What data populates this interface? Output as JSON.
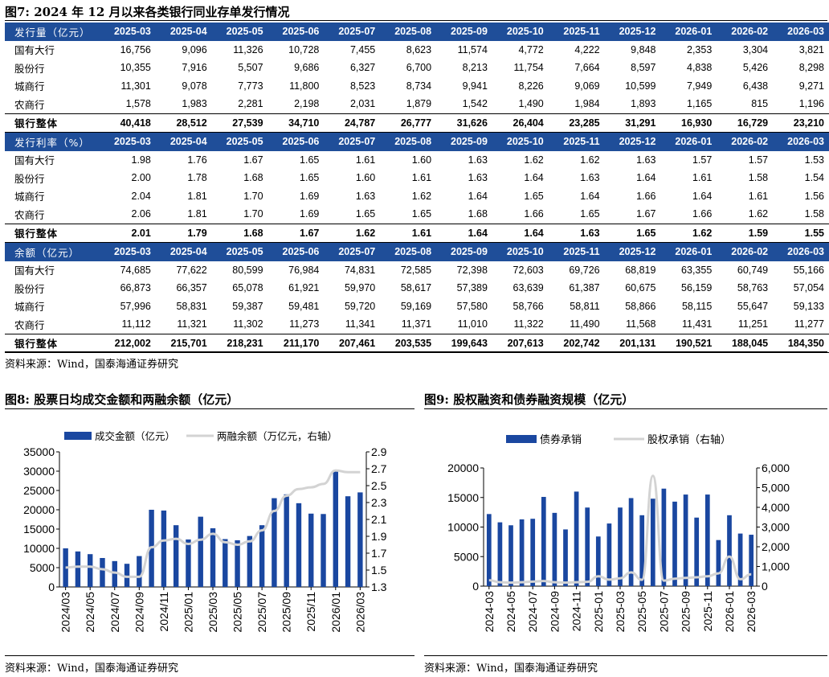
{
  "table": {
    "title": "图7:  2024 年 12 月以来各类银行同业存单发行情况",
    "columns": [
      "2025-03",
      "2025-04",
      "2025-05",
      "2025-06",
      "2025-07",
      "2025-08",
      "2025-09",
      "2025-10",
      "2025-11",
      "2025-12",
      "2026-01",
      "2026-02",
      "2026-03"
    ],
    "sections": [
      {
        "header": "发行量（亿元）",
        "rows": [
          {
            "label": "国有大行",
            "values": [
              "16,756",
              "9,096",
              "11,326",
              "10,728",
              "7,455",
              "8,623",
              "11,574",
              "4,772",
              "4,222",
              "9,848",
              "2,353",
              "3,304",
              "3,821"
            ]
          },
          {
            "label": "股份行",
            "values": [
              "10,355",
              "7,916",
              "5,507",
              "9,686",
              "6,327",
              "6,700",
              "8,213",
              "11,754",
              "7,664",
              "8,597",
              "4,838",
              "5,426",
              "8,298"
            ]
          },
          {
            "label": "城商行",
            "values": [
              "11,301",
              "9,078",
              "7,773",
              "11,800",
              "8,523",
              "8,734",
              "9,941",
              "8,226",
              "9,069",
              "10,599",
              "7,949",
              "6,438",
              "9,271"
            ]
          },
          {
            "label": "农商行",
            "values": [
              "1,578",
              "1,983",
              "2,281",
              "2,198",
              "2,031",
              "1,879",
              "1,542",
              "1,490",
              "1,984",
              "1,893",
              "1,165",
              "815",
              "1,196"
            ]
          }
        ],
        "total": {
          "label": "银行整体",
          "values": [
            "40,418",
            "28,512",
            "27,539",
            "34,710",
            "24,787",
            "26,777",
            "31,626",
            "26,404",
            "23,285",
            "31,291",
            "16,930",
            "16,729",
            "23,210"
          ]
        }
      },
      {
        "header": "发行利率（%）",
        "rows": [
          {
            "label": "国有大行",
            "values": [
              "1.98",
              "1.76",
              "1.67",
              "1.65",
              "1.61",
              "1.60",
              "1.63",
              "1.62",
              "1.62",
              "1.63",
              "1.57",
              "1.57",
              "1.53"
            ]
          },
          {
            "label": "股份行",
            "values": [
              "2.00",
              "1.78",
              "1.68",
              "1.65",
              "1.60",
              "1.61",
              "1.63",
              "1.64",
              "1.63",
              "1.64",
              "1.61",
              "1.58",
              "1.54"
            ]
          },
          {
            "label": "城商行",
            "values": [
              "2.04",
              "1.81",
              "1.70",
              "1.69",
              "1.63",
              "1.62",
              "1.64",
              "1.65",
              "1.64",
              "1.66",
              "1.64",
              "1.61",
              "1.56"
            ]
          },
          {
            "label": "农商行",
            "values": [
              "2.06",
              "1.81",
              "1.70",
              "1.69",
              "1.65",
              "1.65",
              "1.68",
              "1.66",
              "1.65",
              "1.67",
              "1.66",
              "1.62",
              "1.58"
            ]
          }
        ],
        "total": {
          "label": "银行整体",
          "values": [
            "2.01",
            "1.79",
            "1.68",
            "1.67",
            "1.62",
            "1.61",
            "1.64",
            "1.64",
            "1.63",
            "1.65",
            "1.62",
            "1.59",
            "1.55"
          ]
        }
      },
      {
        "header": "余额（亿元）",
        "rows": [
          {
            "label": "国有大行",
            "values": [
              "74,685",
              "77,622",
              "80,599",
              "76,984",
              "74,831",
              "72,585",
              "72,398",
              "72,603",
              "69,726",
              "68,819",
              "63,355",
              "60,749",
              "55,166"
            ]
          },
          {
            "label": "股份行",
            "values": [
              "66,873",
              "66,357",
              "65,078",
              "61,921",
              "59,970",
              "58,617",
              "57,389",
              "63,639",
              "61,387",
              "60,675",
              "56,159",
              "58,763",
              "57,054"
            ]
          },
          {
            "label": "城商行",
            "values": [
              "57,996",
              "58,831",
              "59,387",
              "59,481",
              "59,720",
              "59,169",
              "57,580",
              "58,766",
              "58,811",
              "58,866",
              "58,115",
              "55,647",
              "59,133"
            ]
          },
          {
            "label": "农商行",
            "values": [
              "11,112",
              "11,321",
              "11,302",
              "11,273",
              "11,341",
              "11,371",
              "11,010",
              "11,322",
              "11,490",
              "11,568",
              "11,431",
              "11,251",
              "11,277"
            ]
          }
        ],
        "total": {
          "label": "银行整体",
          "values": [
            "212,002",
            "215,701",
            "218,231",
            "211,170",
            "207,461",
            "203,535",
            "199,643",
            "207,613",
            "202,742",
            "201,131",
            "190,521",
            "188,045",
            "184,350"
          ]
        }
      }
    ],
    "source": "资料来源：Wind，国泰海通证券研究"
  },
  "chart8": {
    "title": "图8:  股票日均成交金额和两融余额（亿元）",
    "source": "资料来源：Wind，国泰海通证券研究"
  },
  "chart9": {
    "title": "图9:  股权融资和债券融资规模（亿元）",
    "source": "资料来源：Wind，国泰海通证券研究"
  },
  "colors": {
    "bar": "#1a47a0",
    "line": "#d3d3d3",
    "header_bg": "#1f4e99"
  },
  "chart_data": [
    {
      "type": "bar",
      "title": "图8:  股票日均成交金额和两融余额（亿元）",
      "x": [
        "2024/03",
        "2024/04",
        "2024/05",
        "2024/06",
        "2024/07",
        "2024/08",
        "2024/09",
        "2024/10",
        "2024/11",
        "2024/12",
        "2025/01",
        "2025/02",
        "2025/03",
        "2025/04",
        "2025/05",
        "2025/06",
        "2025/07",
        "2025/08",
        "2025/09",
        "2025/10",
        "2025/11",
        "2025/12",
        "2026/01",
        "2026/02",
        "2026/03"
      ],
      "xticks": [
        "2024/03",
        "2024/05",
        "2024/07",
        "2024/09",
        "2024/11",
        "2025/01",
        "2025/03",
        "2025/05",
        "2025/07",
        "2025/09",
        "2025/11",
        "2026/01",
        "2026/03"
      ],
      "legend": [
        "成交金额（亿元）",
        "两融余额（万亿元，右轴）"
      ],
      "legend_position": "top",
      "y_left": {
        "ticks": [
          "0",
          "5000",
          "10000",
          "15000",
          "20000",
          "25000",
          "30000",
          "35000"
        ],
        "lim": [
          0,
          35000
        ]
      },
      "y_right": {
        "ticks": [
          "1.3",
          "1.5",
          "1.7",
          "1.9",
          "2.1",
          "2.3",
          "2.5",
          "2.7",
          "2.9"
        ],
        "lim": [
          1.3,
          2.9
        ]
      },
      "series": [
        {
          "name": "成交金额（亿元）",
          "type": "bar",
          "axis": "left",
          "values": [
            10000,
            9200,
            8500,
            7500,
            6700,
            6000,
            8000,
            20000,
            19800,
            16000,
            12300,
            18200,
            15200,
            12400,
            12100,
            13200,
            16000,
            23000,
            24000,
            21700,
            19000,
            18900,
            30000,
            23500,
            24500
          ]
        },
        {
          "name": "两融余额（万亿元，右轴）",
          "type": "line",
          "axis": "right",
          "values": [
            1.53,
            1.54,
            1.54,
            1.51,
            1.47,
            1.42,
            1.42,
            1.77,
            1.85,
            1.87,
            1.81,
            1.86,
            1.93,
            1.83,
            1.8,
            1.84,
            1.97,
            2.2,
            2.38,
            2.46,
            2.48,
            2.52,
            2.68,
            2.66,
            2.66
          ]
        }
      ]
    },
    {
      "type": "bar",
      "title": "图9:  股权融资和债券融资规模（亿元）",
      "x": [
        "2024-03",
        "2024-04",
        "2024-05",
        "2024-06",
        "2024-07",
        "2024-08",
        "2024-09",
        "2024-10",
        "2024-11",
        "2024-12",
        "2025-01",
        "2025-02",
        "2025-03",
        "2025-04",
        "2025-05",
        "2025-06",
        "2025-07",
        "2025-08",
        "2025-09",
        "2025-10",
        "2025-11",
        "2025-12",
        "2026-01",
        "2026-02",
        "2026-03"
      ],
      "xticks": [
        "2024-03",
        "2024-05",
        "2024-07",
        "2024-09",
        "2024-11",
        "2025-01",
        "2025-03",
        "2025-05",
        "2025-07",
        "2025-09",
        "2025-11",
        "2026-01",
        "2026-03"
      ],
      "legend": [
        "债券承销",
        "股权承销（右轴）"
      ],
      "legend_position": "top",
      "y_left": {
        "ticks": [
          "0",
          "5000",
          "10000",
          "15000",
          "20000"
        ],
        "lim": [
          0,
          20000
        ]
      },
      "y_right": {
        "ticks": [
          "0",
          "1,000",
          "2,000",
          "3,000",
          "4,000",
          "5,000",
          "6,000"
        ],
        "lim": [
          0,
          6000
        ]
      },
      "series": [
        {
          "name": "债券承销",
          "type": "bar",
          "axis": "left",
          "values": [
            12200,
            10800,
            10300,
            11300,
            11400,
            15100,
            12400,
            9600,
            16000,
            13300,
            8400,
            10600,
            13300,
            14900,
            12000,
            14800,
            16500,
            14300,
            15500,
            11600,
            15500,
            7800,
            12000,
            8900,
            8700
          ]
        },
        {
          "name": "股权承销（右轴）",
          "type": "line",
          "axis": "right",
          "values": [
            300,
            200,
            180,
            200,
            230,
            260,
            200,
            180,
            200,
            220,
            500,
            330,
            400,
            700,
            320,
            5600,
            280,
            380,
            420,
            450,
            500,
            650,
            1500,
            350,
            600
          ]
        }
      ]
    }
  ]
}
